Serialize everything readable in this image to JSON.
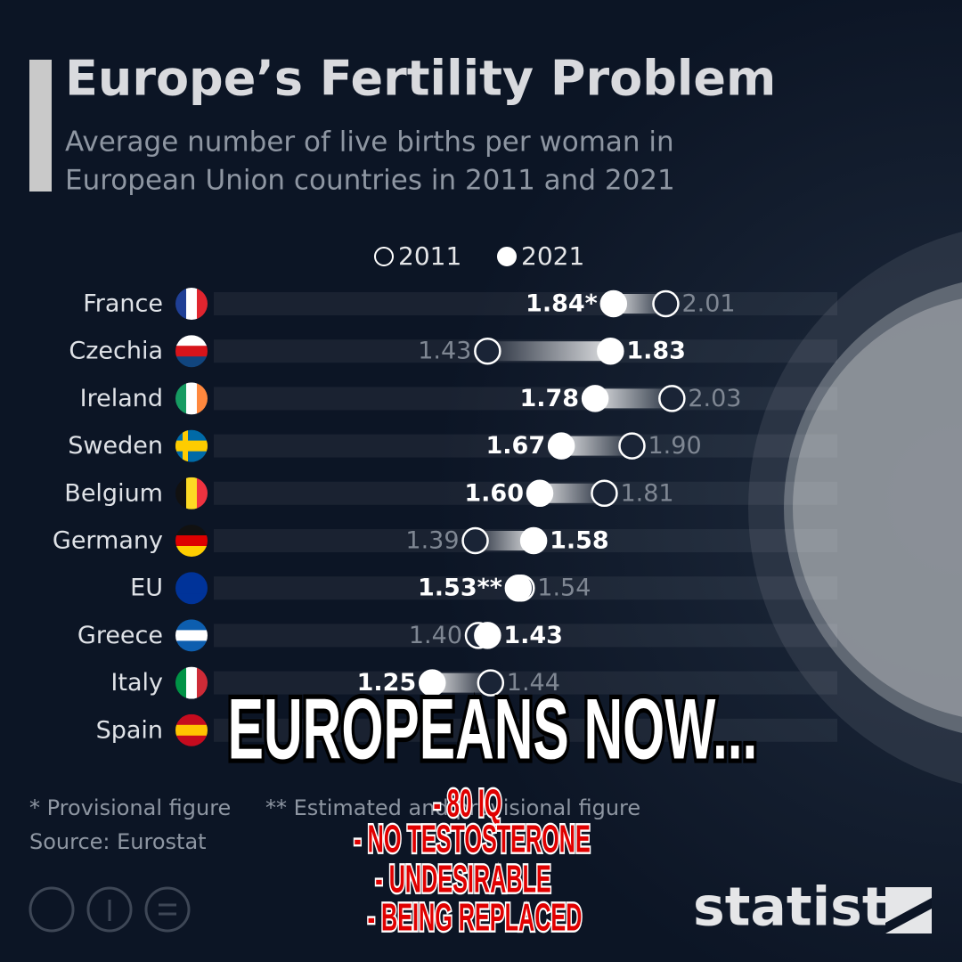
{
  "chart_data": {
    "type": "dumbbell",
    "title": "Europe’s Fertility Problem",
    "subtitle": [
      "Average number of live births per woman in",
      "European Union countries in 2011 and 2021"
    ],
    "categories": [
      "France",
      "Czechia",
      "Ireland",
      "Sweden",
      "Belgium",
      "Germany",
      "EU",
      "Greece",
      "Italy",
      "Spain"
    ],
    "series": [
      {
        "name": "2011",
        "color": "#ffffff",
        "marker": "hollow",
        "values": [
          2.01,
          1.43,
          2.03,
          1.9,
          1.81,
          1.39,
          1.54,
          1.4,
          1.44,
          null
        ],
        "value_labels": [
          "2.01",
          "1.43",
          "2.03",
          "1.90",
          "1.81",
          "1.39",
          "1.54",
          "1.40",
          "1.44",
          null
        ]
      },
      {
        "name": "2021",
        "color": "#ffffff",
        "marker": "filled",
        "values": [
          1.84,
          1.83,
          1.78,
          1.67,
          1.6,
          1.58,
          1.53,
          1.43,
          1.25,
          null
        ],
        "value_labels": [
          "1.84*",
          "1.83",
          "1.78",
          "1.67",
          "1.60",
          "1.58",
          "1.53**",
          "1.43",
          "1.25",
          null
        ]
      }
    ],
    "notes": [
      "* Provisional figure",
      "** Estimated and provisional figure"
    ],
    "source": "Source: Eurostat",
    "brand": "statista"
  },
  "overlay": {
    "headline": "EUROPEANS NOW...",
    "lines": [
      "- 80 IQ",
      "- NO TESTOSTERONE",
      "- UNDESIRABLE",
      "- BEING REPLACED"
    ]
  }
}
